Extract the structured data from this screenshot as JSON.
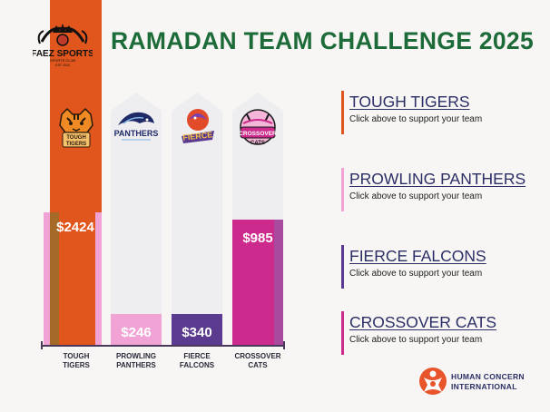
{
  "page": {
    "title": "RAMADAN TEAM CHALLENGE 2025",
    "brand_logo": {
      "name": "FAEZ SPORTS",
      "sub": "SPORTS CLUB",
      "est": "EST 2024"
    },
    "partner": {
      "line1": "HUMAN CONCERN",
      "line2": "INTERNATIONAL"
    }
  },
  "colors": {
    "title": "#1e6b3a",
    "orange": "#e0561c",
    "pink": "#f2a3d6",
    "purple": "#5b3b8f",
    "magenta": "#cc2a8c",
    "legend_text": "#2b2f66"
  },
  "legend": [
    {
      "name": "TOUGH TIGERS",
      "cta": "Click above to support your team",
      "color": "#e0561c"
    },
    {
      "name": "PROWLING PANTHERS",
      "cta": "Click above to support your team",
      "color": "#f2a3d6"
    },
    {
      "name": "FIERCE FALCONS",
      "cta": "Click above to support your team",
      "color": "#5b3b8f"
    },
    {
      "name": "CROSSOVER CATS",
      "cta": "Click above to support your team",
      "color": "#cc2a8c"
    }
  ],
  "chart_data": {
    "type": "bar",
    "categories": [
      "TOUGH TIGERS",
      "PROWLING PANTHERS",
      "FIERCE FALCONS",
      "CROSSOVER CATS"
    ],
    "values": [
      2424,
      246,
      340,
      985
    ],
    "value_labels": [
      "$2424",
      "$246",
      "$340",
      "$985"
    ],
    "team_logos": [
      "TOUGH TIGERS",
      "PANTHERS",
      "FIERCE FALCONS",
      "CROSSOVER CATS"
    ],
    "ylim": [
      0,
      1400
    ],
    "title": "",
    "xlabel": "",
    "ylabel": "",
    "grid": false
  }
}
